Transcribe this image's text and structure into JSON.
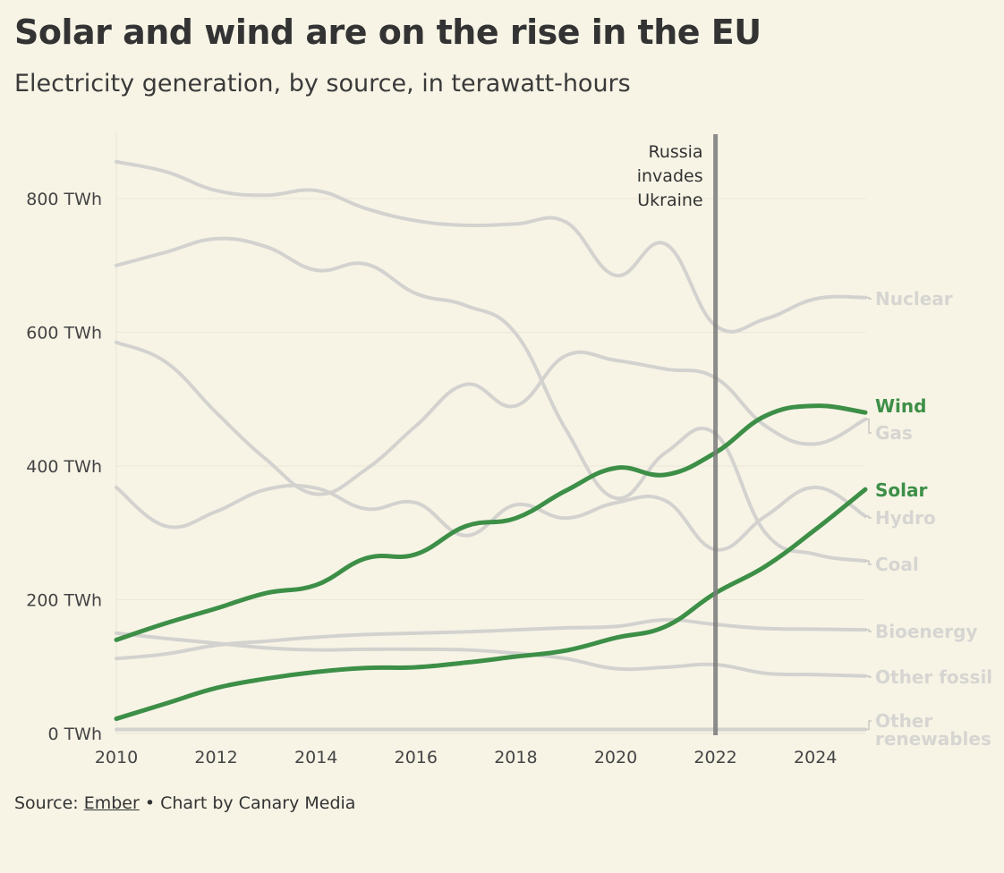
{
  "header": {
    "title": "Solar and wind are on the rise in the EU",
    "subtitle": "Electricity generation, by source, in terawatt-hours"
  },
  "footer": {
    "source_prefix": "Source: ",
    "source_link": "Ember",
    "separator": " • ",
    "credit": "Chart by Canary Media"
  },
  "colors": {
    "background": "#f7f4e6",
    "highlight": "#3d8f47",
    "muted": "#d3d2cf",
    "muted_label": "#d6d5d1",
    "annotation": "#7a7a7a"
  },
  "chart_data": {
    "type": "line",
    "title": "Solar and wind are on the rise in the EU",
    "ylabel": "TWh",
    "xlim": [
      2010,
      2025
    ],
    "ylim": [
      0,
      900
    ],
    "x": [
      2010,
      2011,
      2012,
      2013,
      2014,
      2015,
      2016,
      2017,
      2018,
      2019,
      2020,
      2021,
      2022,
      2023,
      2024,
      2025
    ],
    "x_ticks": [
      2010,
      2012,
      2014,
      2016,
      2018,
      2020,
      2022,
      2024
    ],
    "x_tick_labels": [
      "2010",
      "2012",
      "2014",
      "2016",
      "2018",
      "2020",
      "2022",
      "2024"
    ],
    "y_ticks": [
      0,
      200,
      400,
      600,
      800
    ],
    "y_tick_labels": [
      "0 TWh",
      "200 TWh",
      "400 TWh",
      "600 TWh",
      "800 TWh"
    ],
    "series": [
      {
        "name": "Nuclear",
        "highlight": false,
        "values": [
          855,
          840,
          812,
          805,
          812,
          785,
          767,
          760,
          762,
          765,
          685,
          732,
          610,
          620,
          650,
          652
        ]
      },
      {
        "name": "Gas",
        "highlight": false,
        "values": [
          585,
          555,
          480,
          410,
          358,
          395,
          460,
          522,
          490,
          565,
          558,
          545,
          532,
          460,
          433,
          470
        ]
      },
      {
        "name": "Coal",
        "highlight": false,
        "values": [
          700,
          720,
          740,
          728,
          693,
          702,
          658,
          640,
          598,
          455,
          352,
          420,
          448,
          300,
          268,
          258
        ]
      },
      {
        "name": "Hydro",
        "highlight": false,
        "values": [
          368,
          310,
          332,
          365,
          367,
          336,
          345,
          296,
          342,
          322,
          345,
          348,
          275,
          325,
          368,
          325
        ]
      },
      {
        "name": "Bioenergy",
        "highlight": false,
        "values": [
          112,
          119,
          132,
          138,
          144,
          148,
          150,
          152,
          155,
          158,
          160,
          170,
          163,
          157,
          156,
          155
        ]
      },
      {
        "name": "Other fossil",
        "highlight": false,
        "values": [
          150,
          142,
          135,
          128,
          125,
          126,
          126,
          125,
          120,
          112,
          97,
          99,
          103,
          90,
          88,
          86
        ]
      },
      {
        "name": "Other renewables",
        "highlight": false,
        "values": [
          6,
          6,
          6,
          6,
          6,
          6,
          6,
          6,
          6,
          6,
          6,
          6,
          6,
          6,
          6,
          6
        ]
      },
      {
        "name": "Wind",
        "highlight": true,
        "values": [
          140,
          165,
          187,
          210,
          222,
          262,
          268,
          310,
          322,
          363,
          397,
          387,
          420,
          475,
          490,
          480
        ]
      },
      {
        "name": "Solar",
        "highlight": true,
        "values": [
          22,
          45,
          68,
          82,
          92,
          98,
          99,
          106,
          115,
          124,
          143,
          160,
          210,
          250,
          305,
          365
        ]
      }
    ],
    "end_labels": [
      {
        "series": "Nuclear",
        "text": "Nuclear"
      },
      {
        "series": "Wind",
        "text": "Wind"
      },
      {
        "series": "Gas",
        "text": "Gas"
      },
      {
        "series": "Solar",
        "text": "Solar"
      },
      {
        "series": "Hydro",
        "text": "Hydro"
      },
      {
        "series": "Coal",
        "text": "Coal"
      },
      {
        "series": "Bioenergy",
        "text": "Bioenergy"
      },
      {
        "series": "Other fossil",
        "text": "Other fossil"
      },
      {
        "series": "Other renewables",
        "text": "Other\nrenewables"
      }
    ],
    "annotation": {
      "x": 2022,
      "text": "Russia\ninvades\nUkraine"
    }
  }
}
